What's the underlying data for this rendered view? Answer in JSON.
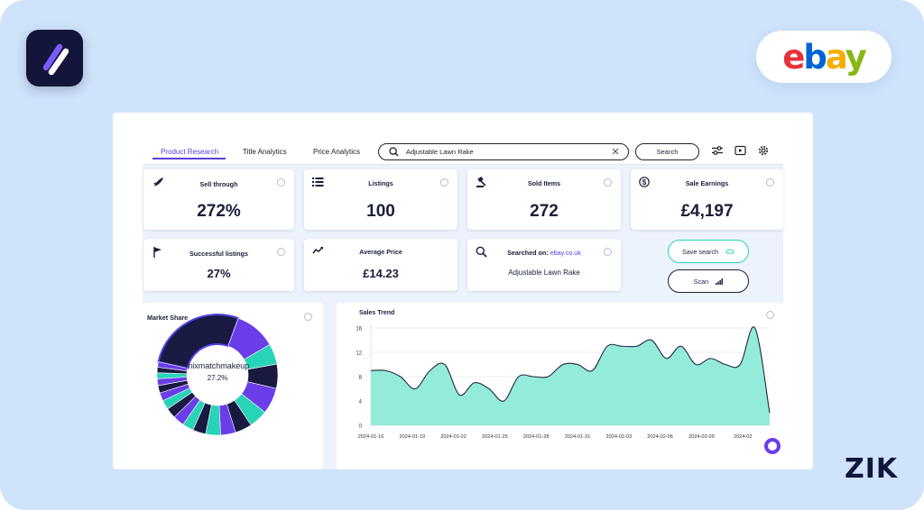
{
  "brand": {
    "ebay_letters": [
      "e",
      "b",
      "a",
      "y"
    ],
    "ebay_colors": [
      "#e53238",
      "#0064d2",
      "#f5af02",
      "#86b817"
    ],
    "watermark": "ZIK",
    "accent": "#5b3fd6",
    "teal": "#29d3b8"
  },
  "tabs": [
    {
      "label": "Product Research",
      "active": true
    },
    {
      "label": "Title Analytics",
      "active": false
    },
    {
      "label": "Price Analytics",
      "active": false
    }
  ],
  "search": {
    "value": "Adjustable Lawn Rake",
    "button_label": "Search"
  },
  "toolbar_icons": [
    "sliders-icon",
    "video-icon",
    "settings-gear-icon"
  ],
  "stats": {
    "sell_through": {
      "label": "Sell through",
      "value": "272%",
      "icon": "rocket-icon"
    },
    "listings": {
      "label": "Listings",
      "value": "100",
      "icon": "list-icon"
    },
    "sold_items": {
      "label": "Sold Items",
      "value": "272",
      "icon": "gavel-icon"
    },
    "sale_earnings": {
      "label": "Sale Earnings",
      "value": "£4,197",
      "icon": "dollar-icon"
    },
    "successful_listings": {
      "label": "Successful listings",
      "value": "27%",
      "icon": "flag-icon"
    },
    "average_price": {
      "label": "Average Price",
      "value": "£14.23",
      "icon": "trend-icon"
    },
    "searched_on": {
      "label": "Searched on:",
      "site": "ebay.co.uk",
      "value": "Adjustable Lawn Rake",
      "icon": "search-icon"
    }
  },
  "actions": {
    "save_search": "Save search",
    "scan": "Scan"
  },
  "market_share": {
    "title": "Market Share",
    "top_seller": "mixmatchmakeup",
    "top_share": "27.2%"
  },
  "chart_data": [
    {
      "type": "pie",
      "title": "Market Share",
      "labels": [
        "mixmatchmakeup"
      ],
      "values": [
        27.2
      ],
      "segment_colors": [
        "#191a42",
        "#6a3de8",
        "#29d3b8",
        "#191a42",
        "#6a3de8",
        "#29d3b8",
        "#191a42",
        "#6a3de8",
        "#29d3b8",
        "#191a42",
        "#29d3b8",
        "#6a3de8",
        "#191a42",
        "#29d3b8",
        "#6a3de8",
        "#191a42",
        "#6a3de8",
        "#29d3b8",
        "#191a42",
        "#6a3de8"
      ],
      "segment_values": [
        27.2,
        11.0,
        5.5,
        6.5,
        7.0,
        5.0,
        4.5,
        4.0,
        4.0,
        3.5,
        3.0,
        3.0,
        2.8,
        2.5,
        2.2,
        2.0,
        1.8,
        1.6,
        1.5,
        1.4
      ]
    },
    {
      "type": "area",
      "title": "Sales Trend",
      "x": [
        "2024-01-16",
        "2024-01-17",
        "2024-01-18",
        "2024-01-19",
        "2024-01-20",
        "2024-01-21",
        "2024-01-22",
        "2024-01-23",
        "2024-01-24",
        "2024-01-25",
        "2024-01-26",
        "2024-01-27",
        "2024-01-28",
        "2024-01-29",
        "2024-01-30",
        "2024-01-31",
        "2024-02-01",
        "2024-02-02",
        "2024-02-03",
        "2024-02-04",
        "2024-02-05",
        "2024-02-06",
        "2024-02-07",
        "2024-02-08",
        "2024-02-09",
        "2024-02-10",
        "2024-02-11",
        "2024-02-12"
      ],
      "y": [
        9,
        9,
        8,
        6,
        9,
        10,
        5,
        7,
        6,
        4,
        8,
        8,
        8,
        10,
        10,
        9,
        13,
        13,
        13,
        14,
        11,
        13,
        10,
        11,
        10,
        10,
        16,
        2
      ],
      "x_tick_labels": [
        "2024-01-16",
        "2024-01-19",
        "2024-01-22",
        "2024-01-25",
        "2024-01-28",
        "2024-01-31",
        "2024-02-03",
        "2024-02-06",
        "2024-02-09",
        "2024-02"
      ],
      "y_ticks": [
        0,
        4,
        8,
        12,
        16
      ],
      "ylim": [
        0,
        16
      ],
      "grid": true,
      "fill": "#92ecd9",
      "line": "#23263f"
    }
  ]
}
